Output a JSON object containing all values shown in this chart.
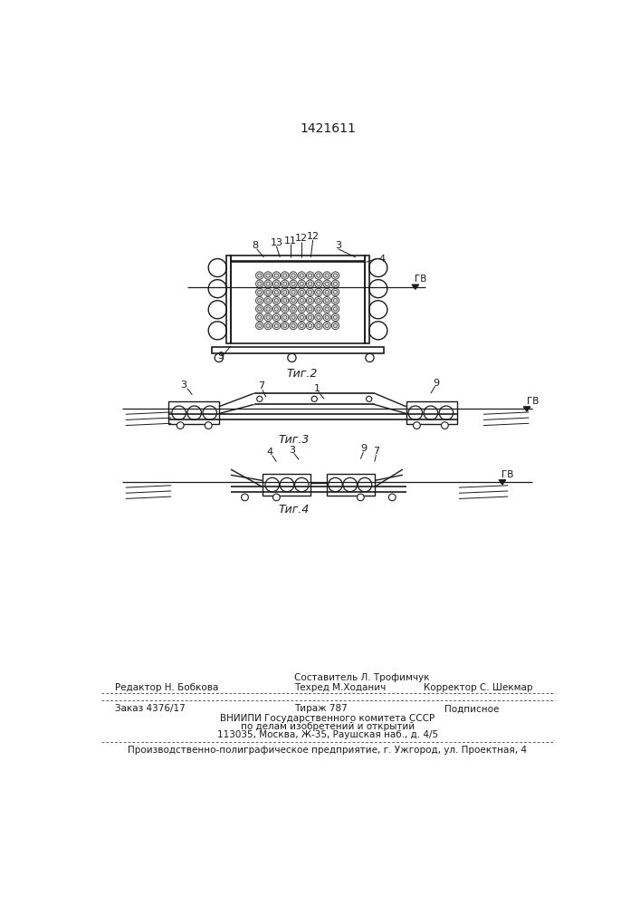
{
  "patent_number": "1421611",
  "fig2_label": "Τиг.2",
  "fig3_label": "Τиг.3",
  "fig4_label": "Τиг.4",
  "footer_line1_left": "Редактор Н. Бобкова",
  "footer_line1_center": "Составитель Л. Трофимчук",
  "footer_line2_center": "Техред М.Ходанич",
  "footer_line2_right": "Корректор С. Шекмар",
  "footer_line3_left": "Заказ 4376/17",
  "footer_line3_center": "Тираж 787",
  "footer_line3_right": "Подписное",
  "footer_line4": "ВНИИПИ Государственного комитета СССР",
  "footer_line5": "по делам изобретений и открытий",
  "footer_line6": "113035, Москва, Ж-35, Раушская наб., д. 4/5",
  "footer_line7": "Производственно-полиграфическое предприятие, г. Ужгород, ул. Проектная, 4",
  "bg_color": "#ffffff",
  "line_color": "#1a1a1a"
}
